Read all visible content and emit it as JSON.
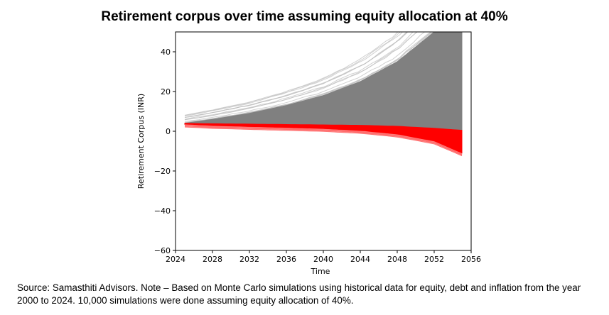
{
  "chart_data": {
    "type": "line",
    "title": "Retirement corpus over time assuming equity allocation at 40%",
    "xlabel": "Time",
    "ylabel": "Retirement Corpus (INR)",
    "xlim": [
      2024,
      2056
    ],
    "ylim": [
      -60,
      50
    ],
    "x_ticks": [
      2024,
      2028,
      2032,
      2036,
      2040,
      2044,
      2048,
      2052,
      2056
    ],
    "y_ticks": [
      -60,
      -40,
      -20,
      0,
      20,
      40
    ],
    "x_tick_labels": [
      "2024",
      "2028",
      "2032",
      "2036",
      "2040",
      "2044",
      "2048",
      "2052",
      "2056"
    ],
    "y_tick_labels": [
      "−60",
      "−40",
      "−20",
      "0",
      "20",
      "40"
    ],
    "grid": false,
    "series": [
      {
        "color": "#808080",
        "x": [
          2025,
          2028,
          2032,
          2036,
          2040,
          2044,
          2048,
          2052,
          2055
        ],
        "upper": [
          4,
          6,
          9,
          13,
          18,
          25,
          35,
          50,
          50
        ],
        "lower": [
          3.5,
          3.2,
          2.8,
          2.5,
          2.2,
          2.0,
          1.5,
          0.8,
          0.5
        ]
      },
      {
        "color": "#ff0000",
        "x": [
          2025,
          2028,
          2032,
          2036,
          2040,
          2044,
          2048,
          2052,
          2055
        ],
        "upper": [
          4,
          3.8,
          3.6,
          3.4,
          3.2,
          3.0,
          2.5,
          1.5,
          0.5
        ],
        "lower": [
          3.5,
          2.8,
          2.3,
          1.8,
          1.3,
          0.3,
          -1.5,
          -5,
          -11
        ]
      }
    ]
  },
  "source_note": "Source: Samasthiti Advisors. Note – Based on Monte Carlo simulations using historical data for equity, debt and inflation from the year 2000 to 2024. 10,000 simulations were done assuming equity allocation of 40%."
}
